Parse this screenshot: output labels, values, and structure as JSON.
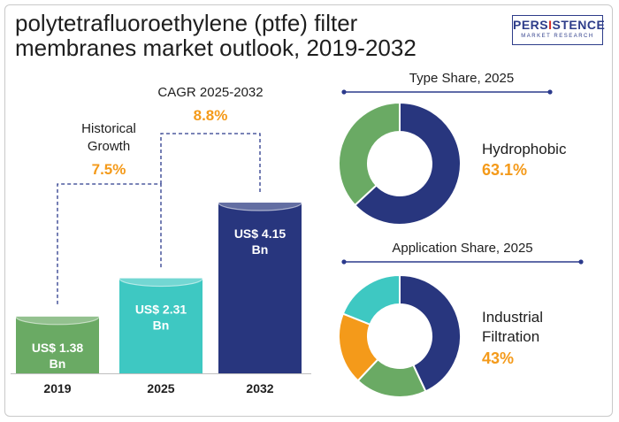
{
  "title": "polytetrafluoroethylene (ptfe) filter membranes market outlook, 2019-2032",
  "logo": {
    "main_before": "PERS",
    "main_accent": "I",
    "main_after": "STENCE",
    "sub": "MARKET RESEARCH"
  },
  "colors": {
    "green": "#6aaa64",
    "teal": "#3ec8c2",
    "navy": "#28367e",
    "orange": "#f49a1a",
    "text": "#1e1e1e"
  },
  "chart_data": [
    {
      "type": "bar",
      "categories": [
        "2019",
        "2025",
        "2032"
      ],
      "values": [
        1.38,
        2.31,
        4.15
      ],
      "value_labels": [
        "US$ 1.38 Bn",
        "US$ 2.31 Bn",
        "US$ 4.15 Bn"
      ],
      "colors": [
        "#6aaa64",
        "#3ec8c2",
        "#28367e"
      ],
      "annotations": [
        {
          "label_lines": [
            "Historical",
            "Growth"
          ],
          "value": "7.5%"
        },
        {
          "label_lines": [
            "CAGR 2025-2032"
          ],
          "value": "8.8%"
        }
      ]
    },
    {
      "type": "pie",
      "title": "Type Share, 2025",
      "slices": [
        {
          "name": "Hydrophobic",
          "value": 63.1,
          "color": "#28367e"
        },
        {
          "name": "",
          "value": 36.9,
          "color": "#6aaa64"
        }
      ],
      "callout_lines": [
        "Hydrophobic"
      ],
      "callout_value": "63.1%"
    },
    {
      "type": "pie",
      "title": "Application  Share, 2025",
      "slices": [
        {
          "name": "Industrial Filtration",
          "value": 43,
          "color": "#28367e"
        },
        {
          "name": "",
          "value": 19,
          "color": "#6aaa64"
        },
        {
          "name": "",
          "value": 19,
          "color": "#f49a1a"
        },
        {
          "name": "",
          "value": 19,
          "color": "#3ec8c2"
        }
      ],
      "callout_lines": [
        "Industrial",
        "Filtration"
      ],
      "callout_value": "43%"
    }
  ]
}
